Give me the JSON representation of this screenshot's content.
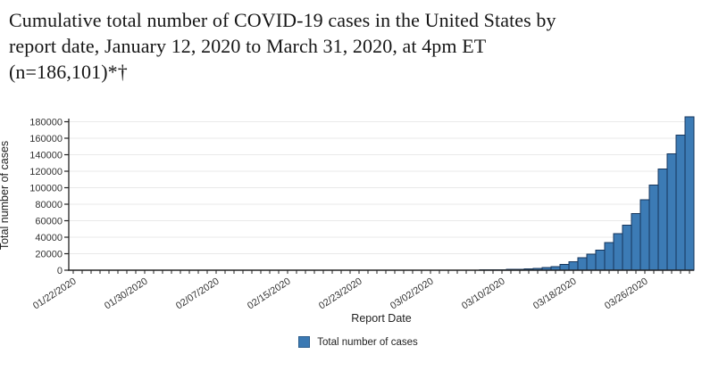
{
  "page_title": {
    "line1": "Cumulative total number of COVID-19 cases in the United States by",
    "line2": "report date, January 12, 2020 to March 31, 2020, at 4pm ET",
    "line3": "(n=186,101)*†"
  },
  "chart_data": {
    "type": "bar",
    "title": "Cumulative total number of COVID-19 cases in the United States by report date, January 12, 2020 to March 31, 2020, at 4pm ET (n=186,101)*†",
    "xlabel": "Report Date",
    "ylabel": "Total number of cases",
    "n_total_label": "186,101",
    "x": [
      "01/22/2020",
      "01/23/2020",
      "01/24/2020",
      "01/25/2020",
      "01/26/2020",
      "01/27/2020",
      "01/28/2020",
      "01/29/2020",
      "01/30/2020",
      "01/31/2020",
      "02/01/2020",
      "02/02/2020",
      "02/03/2020",
      "02/04/2020",
      "02/05/2020",
      "02/06/2020",
      "02/07/2020",
      "02/08/2020",
      "02/09/2020",
      "02/10/2020",
      "02/11/2020",
      "02/12/2020",
      "02/13/2020",
      "02/14/2020",
      "02/15/2020",
      "02/16/2020",
      "02/17/2020",
      "02/18/2020",
      "02/19/2020",
      "02/20/2020",
      "02/21/2020",
      "02/22/2020",
      "02/23/2020",
      "02/24/2020",
      "02/25/2020",
      "02/26/2020",
      "02/27/2020",
      "02/28/2020",
      "02/29/2020",
      "03/01/2020",
      "03/02/2020",
      "03/03/2020",
      "03/04/2020",
      "03/05/2020",
      "03/06/2020",
      "03/07/2020",
      "03/08/2020",
      "03/09/2020",
      "03/10/2020",
      "03/11/2020",
      "03/12/2020",
      "03/13/2020",
      "03/14/2020",
      "03/15/2020",
      "03/16/2020",
      "03/17/2020",
      "03/18/2020",
      "03/19/2020",
      "03/20/2020",
      "03/21/2020",
      "03/22/2020",
      "03/23/2020",
      "03/24/2020",
      "03/25/2020",
      "03/26/2020",
      "03/27/2020",
      "03/28/2020",
      "03/29/2020",
      "03/30/2020",
      "03/31/2020"
    ],
    "values": [
      1,
      1,
      2,
      2,
      5,
      5,
      5,
      5,
      6,
      7,
      8,
      8,
      11,
      11,
      12,
      12,
      12,
      12,
      13,
      13,
      13,
      13,
      14,
      15,
      15,
      15,
      15,
      25,
      26,
      27,
      30,
      32,
      43,
      45,
      48,
      51,
      53,
      57,
      62,
      75,
      91,
      108,
      129,
      148,
      164,
      213,
      279,
      423,
      647,
      938,
      1215,
      1629,
      1896,
      3487,
      4226,
      7038,
      10442,
      15219,
      19624,
      24583,
      33404,
      44183,
      54453,
      68440,
      85356,
      103321,
      122653,
      140904,
      163539,
      186101
    ],
    "x_tick_labels": [
      "01/22/2020",
      "01/30/2020",
      "02/07/2020",
      "02/15/2020",
      "02/23/2020",
      "03/02/2020",
      "03/10/2020",
      "03/18/2020",
      "03/26/2020"
    ],
    "y_ticks": [
      0,
      20000,
      40000,
      60000,
      80000,
      100000,
      120000,
      140000,
      160000,
      180000
    ],
    "ylim": [
      0,
      190000
    ],
    "grid": "horizontal",
    "legend": [
      "Total number of cases"
    ],
    "legend_position": "bottom",
    "colors": {
      "bar_fill": "#3C7BB5",
      "bar_edge": "#16365C",
      "grid": "#E9E9E9",
      "axis": "#222222",
      "legend_swatch": "#3B79B3"
    }
  }
}
